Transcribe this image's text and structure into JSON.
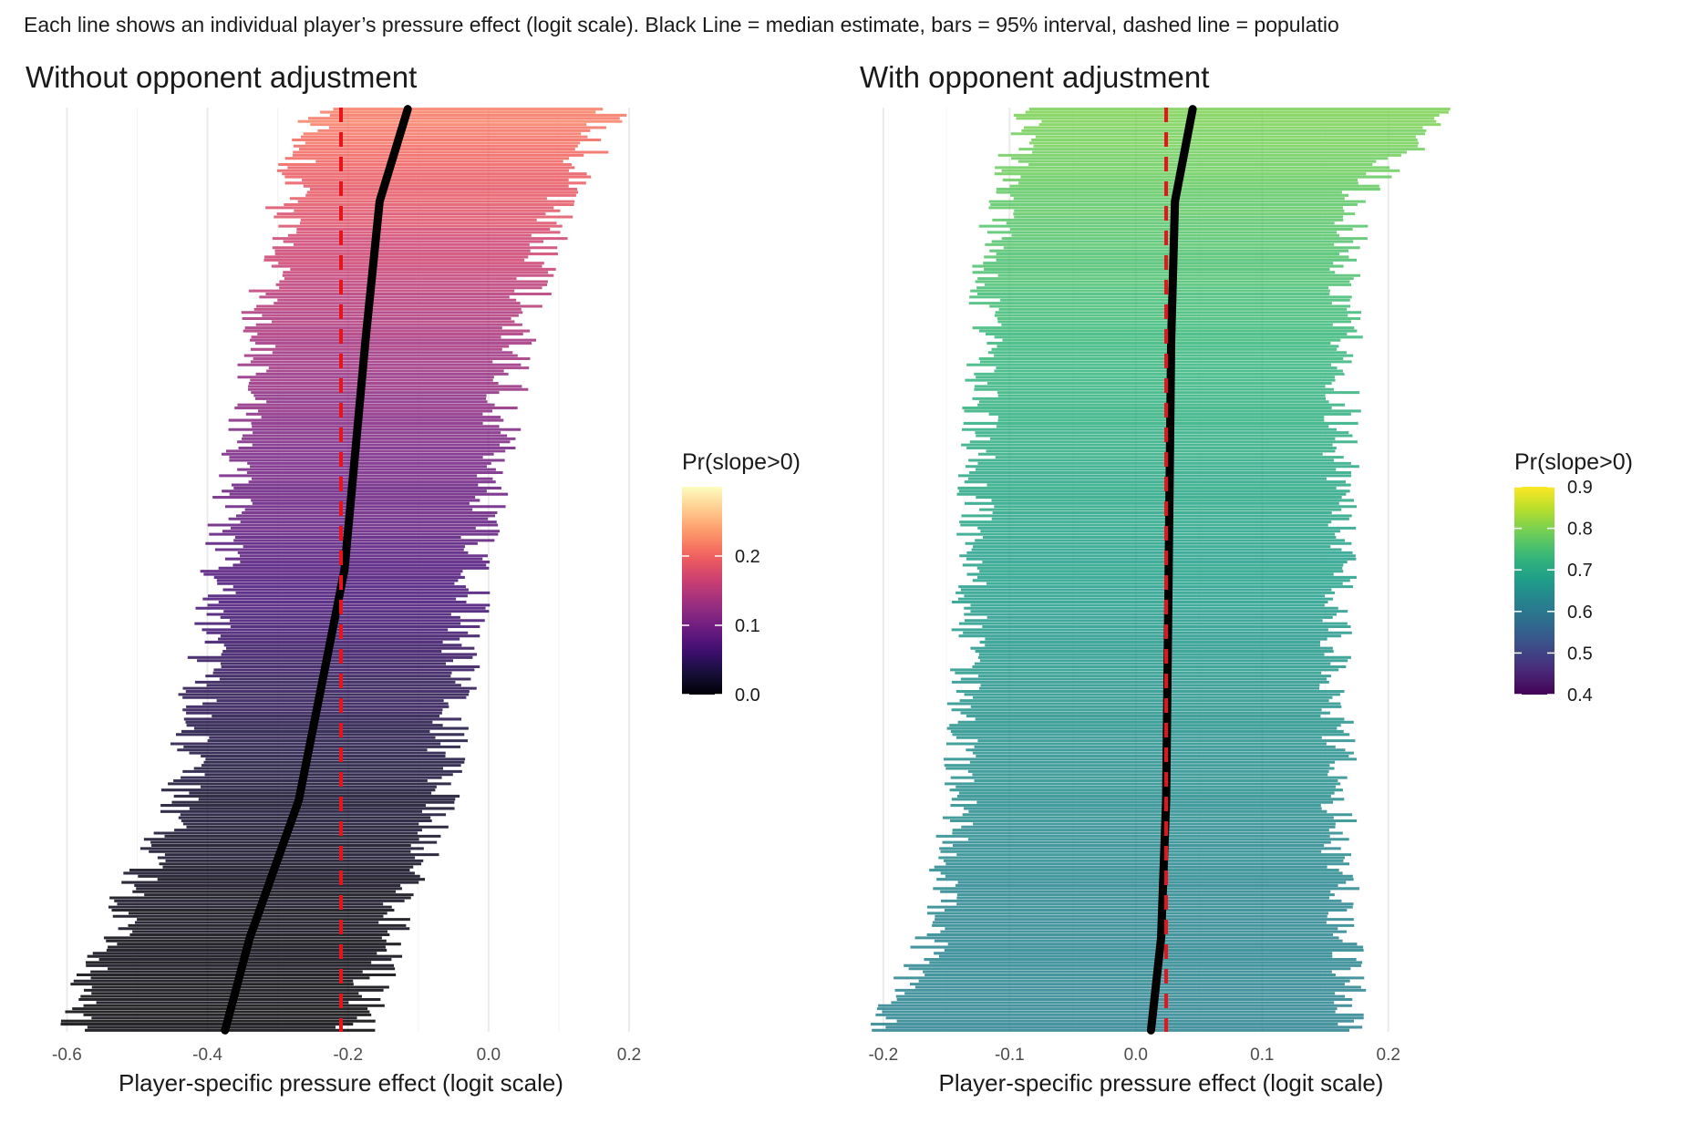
{
  "subtitle": "Each line shows an individual player’s pressure effect (logit scale). Black Line = median estimate, bars = 95% interval, dashed line = populatio",
  "chart_data": [
    {
      "type": "bar",
      "subtype": "horizontal caterpillar / interval plot",
      "title": "Without opponent adjustment",
      "xlabel": "Player-specific pressure effect (logit scale)",
      "ylabel": "",
      "xlim": [
        -0.62,
        0.2
      ],
      "x_ticks": [
        "-0.6",
        "-0.4",
        "-0.2",
        "0.0",
        "0.2"
      ],
      "x_tick_values": [
        -0.6,
        -0.4,
        -0.2,
        0.0,
        0.2
      ],
      "grid": true,
      "n_players_approx": 300,
      "population_line": -0.21,
      "median_summary": {
        "positions": [
          0.0,
          0.1,
          0.25,
          0.5,
          0.75,
          0.9,
          1.0
        ],
        "values": [
          -0.375,
          -0.34,
          -0.27,
          -0.205,
          -0.175,
          -0.155,
          -0.115
        ]
      },
      "lower_summary": {
        "positions": [
          0.0,
          0.1,
          0.25,
          0.5,
          0.75,
          0.9,
          1.0
        ],
        "values": [
          -0.6,
          -0.54,
          -0.44,
          -0.38,
          -0.33,
          -0.29,
          -0.24
        ]
      },
      "upper_summary": {
        "positions": [
          0.0,
          0.1,
          0.25,
          0.5,
          0.75,
          0.9,
          1.0
        ],
        "values": [
          -0.19,
          -0.14,
          -0.07,
          -0.02,
          0.04,
          0.1,
          0.18
        ]
      },
      "color_by": "Pr(slope>0)",
      "color_range": [
        0.0,
        0.08,
        0.22
      ],
      "legend": {
        "title": "Pr(slope>0)",
        "labels": [
          "0.2",
          "0.1",
          "0.0"
        ],
        "label_values": [
          0.2,
          0.1,
          0.0
        ],
        "min": 0.0,
        "max": 0.3,
        "palette": "magma",
        "placement": "right"
      },
      "colors": {
        "population_line": "#e8141b",
        "median_line": "#000000"
      }
    },
    {
      "type": "bar",
      "subtype": "horizontal caterpillar / interval plot",
      "title": "With opponent adjustment",
      "xlabel": "Player-specific pressure effect (logit scale)",
      "ylabel": "",
      "xlim": [
        -0.21,
        0.25
      ],
      "x_ticks": [
        "-0.2",
        "-0.1",
        "0.0",
        "0.1",
        "0.2"
      ],
      "x_tick_values": [
        -0.2,
        -0.1,
        0.0,
        0.1,
        0.2
      ],
      "grid": true,
      "n_players_approx": 300,
      "population_line": 0.024,
      "median_summary": {
        "positions": [
          0.0,
          0.1,
          0.25,
          0.5,
          0.75,
          0.9,
          1.0
        ],
        "values": [
          0.012,
          0.02,
          0.024,
          0.026,
          0.028,
          0.031,
          0.045
        ]
      },
      "lower_summary": {
        "positions": [
          0.0,
          0.1,
          0.25,
          0.5,
          0.75,
          0.9,
          1.0
        ],
        "values": [
          -0.2,
          -0.16,
          -0.14,
          -0.13,
          -0.12,
          -0.11,
          -0.08
        ]
      },
      "upper_summary": {
        "positions": [
          0.0,
          0.1,
          0.25,
          0.5,
          0.75,
          0.9,
          1.0
        ],
        "values": [
          0.17,
          0.165,
          0.16,
          0.16,
          0.165,
          0.17,
          0.25
        ]
      },
      "color_by": "Pr(slope>0)",
      "color_range": [
        0.62,
        0.66,
        0.8
      ],
      "legend": {
        "title": "Pr(slope>0)",
        "labels": [
          "0.9",
          "0.8",
          "0.7",
          "0.6",
          "0.5",
          "0.4"
        ],
        "label_values": [
          0.9,
          0.8,
          0.7,
          0.6,
          0.5,
          0.4
        ],
        "min": 0.4,
        "max": 0.9,
        "palette": "viridis",
        "placement": "right"
      },
      "colors": {
        "population_line": "#e8141b",
        "median_line": "#000000"
      }
    }
  ]
}
